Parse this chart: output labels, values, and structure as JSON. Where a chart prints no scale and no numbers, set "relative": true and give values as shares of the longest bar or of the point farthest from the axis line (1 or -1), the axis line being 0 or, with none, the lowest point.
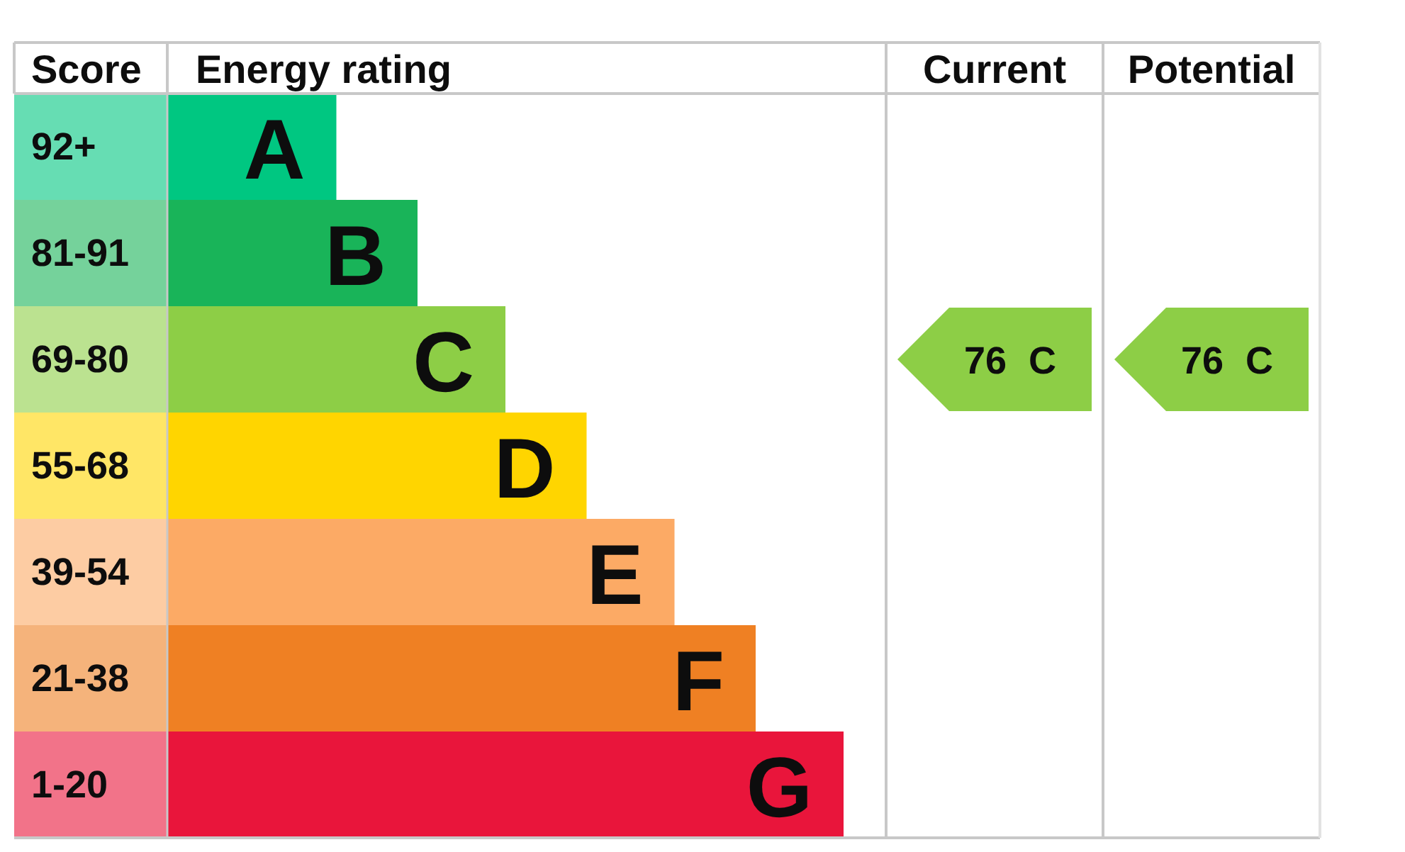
{
  "chart_data": {
    "type": "bar",
    "orientation": "horizontal",
    "relative": true,
    "ylabel": "Score",
    "xlabel": "Energy rating",
    "categories": [
      "92+",
      "81-91",
      "69-80",
      "55-68",
      "39-54",
      "21-38",
      "1-20"
    ],
    "values": [
      0.25,
      0.37,
      0.5,
      0.62,
      0.75,
      0.87,
      1
    ],
    "colors": [
      "#00c781",
      "#19b459",
      "#8dce46",
      "#ffd500",
      "#fcaa65",
      "#ef8023",
      "#e9153b"
    ],
    "annotations": [
      "Current",
      "Potential",
      {
        "text": "A",
        "x": 0.25,
        "y": "92+"
      },
      {
        "text": "B",
        "x": 0.37,
        "y": "81-91"
      },
      {
        "text": "C",
        "x": 0.5,
        "y": "69-80"
      },
      {
        "text": "D",
        "x": 0.62,
        "y": "55-68"
      },
      {
        "text": "E",
        "x": 0.75,
        "y": "39-54"
      },
      {
        "text": "F",
        "x": 0.87,
        "y": "21-38"
      },
      {
        "text": "G",
        "x": 1,
        "y": "1-20"
      },
      "76 C",
      "76 C"
    ]
  }
}
